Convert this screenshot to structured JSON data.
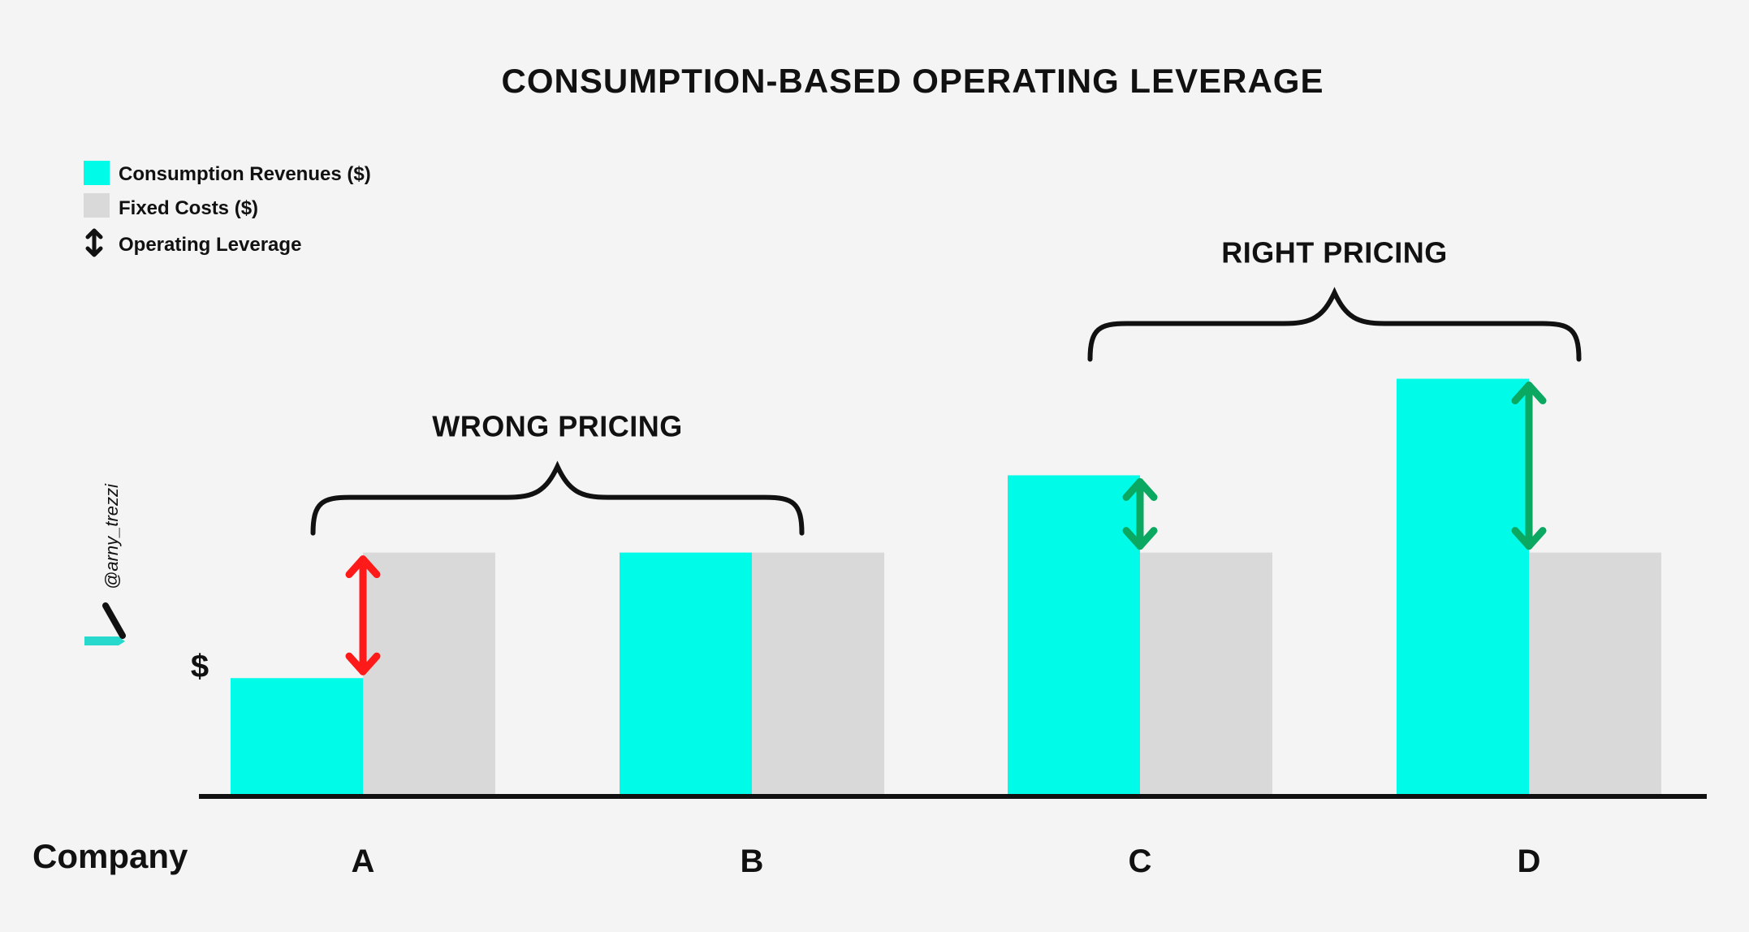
{
  "chart_data": {
    "type": "bar",
    "title": "CONSUMPTION-BASED OPERATING LEVERAGE",
    "xlabel": "Company",
    "ylabel": "$",
    "categories": [
      "A",
      "B",
      "C",
      "D"
    ],
    "series": [
      {
        "name": "Consumption Revenues ($)",
        "color": "#00fbe9",
        "values": [
          48,
          100,
          132,
          172
        ]
      },
      {
        "name": "Fixed Costs ($)",
        "color": "#d9d9d9",
        "values": [
          100,
          100,
          100,
          100
        ]
      }
    ],
    "ylim": [
      0,
      190
    ],
    "grid": false,
    "legend": {
      "position": "top-left",
      "entries": [
        {
          "label": "Consumption Revenues ($)",
          "icon": "cyan-square-icon"
        },
        {
          "label": "Fixed Costs ($)",
          "icon": "gray-square-icon"
        },
        {
          "label": "Operating Leverage",
          "icon": "double-arrow-icon"
        }
      ]
    },
    "operating_leverage": [
      {
        "category": "A",
        "direction": "negative",
        "color": "#ff1a1a"
      },
      {
        "category": "C",
        "direction": "positive",
        "color": "#0aa860"
      },
      {
        "category": "D",
        "direction": "positive",
        "color": "#0aa860"
      }
    ],
    "annotations": [
      {
        "text": "WRONG PRICING",
        "spans": [
          "A",
          "B"
        ]
      },
      {
        "text": "RIGHT PRICING",
        "spans": [
          "C",
          "D"
        ]
      }
    ],
    "watermark": "@arny_trezzi"
  }
}
